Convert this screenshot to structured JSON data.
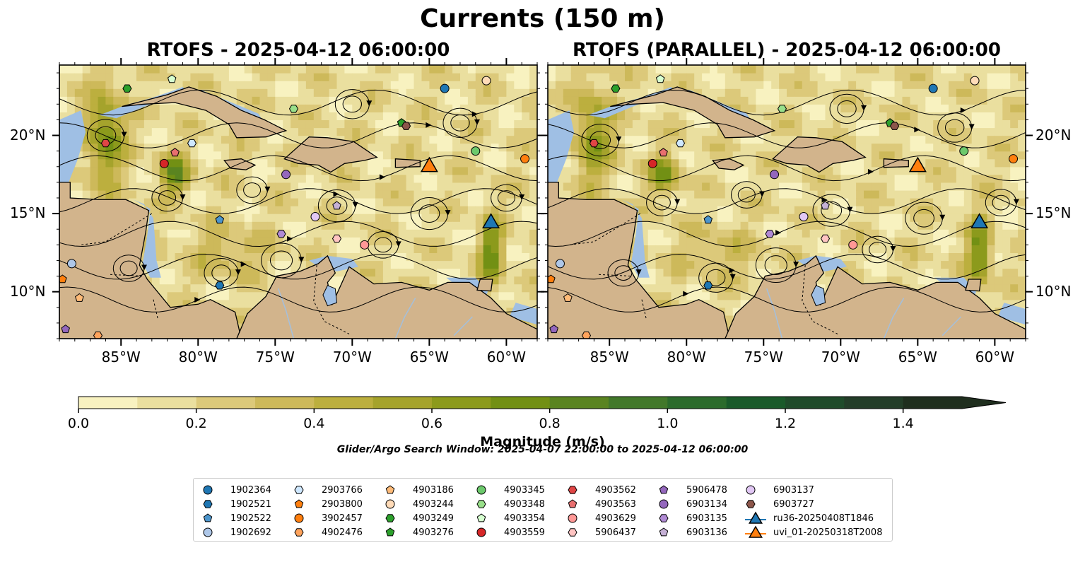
{
  "title": "Currents (150 m)",
  "panels": [
    {
      "title": "RTOFS - 2025-04-12 06:00:00"
    },
    {
      "title": "RTOFS (PARALLEL) - 2025-04-12 06:00:00"
    }
  ],
  "chart_data": {
    "type": "heatmap",
    "map_extent": {
      "lon": [
        -89.0,
        -58.0
      ],
      "lat": [
        7.0,
        24.5
      ]
    },
    "x_ticks": [
      "85°W",
      "80°W",
      "75°W",
      "70°W",
      "65°W",
      "60°W"
    ],
    "x_tick_values": [
      -85,
      -80,
      -75,
      -70,
      -65,
      -60
    ],
    "y_ticks": [
      "10°N",
      "15°N",
      "20°N"
    ],
    "y_tick_values": [
      10,
      15,
      20
    ],
    "colorbar": {
      "label": "Magnitude (m/s)",
      "min": 0.0,
      "max": 1.5,
      "extend": "max",
      "tick_labels": [
        "0.0",
        "0.2",
        "0.4",
        "0.6",
        "0.8",
        "1.0",
        "1.2",
        "1.4"
      ],
      "tick_values": [
        0.0,
        0.2,
        0.4,
        0.6,
        0.8,
        1.0,
        1.2,
        1.4
      ],
      "levels": [
        0.0,
        0.1,
        0.2,
        0.3,
        0.4,
        0.5,
        0.6,
        0.7,
        0.8,
        0.9,
        1.0,
        1.1,
        1.2,
        1.3,
        1.4,
        1.5
      ],
      "colors": [
        "#f8f2c0",
        "#eadf9f",
        "#dcc97a",
        "#cdb95a",
        "#bcaf3e",
        "#a5a32c",
        "#8c9a1c",
        "#729014",
        "#5a8420",
        "#42782a",
        "#2c6b2c",
        "#1a5a2a",
        "#1f4b2a",
        "#233d28",
        "#1f2e1e"
      ]
    },
    "search_window": "Glider/Argo Search Window: 2025-04-07 22:00:00 to 2025-04-12 06:00:00",
    "legend_columns": [
      [
        "1902364",
        "1902521",
        "1902522",
        "1902692"
      ],
      [
        "2903766",
        "2903800",
        "3902457",
        "4902476"
      ],
      [
        "4903186",
        "4903244",
        "4903249",
        "4903276"
      ],
      [
        "4903345",
        "4903348",
        "4903354",
        "4903559"
      ],
      [
        "4903562",
        "4903563",
        "4903629",
        "5906437"
      ],
      [
        "5906478",
        "6903134",
        "6903135",
        "6903136"
      ],
      [
        "6903137",
        "6903727",
        "ru36-20250408T1846",
        "uvi_01-20250318T2008"
      ]
    ],
    "series": [
      {
        "name": "1902364",
        "marker": "circle",
        "color": "#1f77b4",
        "lon": -64.0,
        "lat": 23.0
      },
      {
        "name": "1902521",
        "marker": "hexagon",
        "color": "#1f77b4",
        "lon": -78.6,
        "lat": 10.4
      },
      {
        "name": "1902522",
        "marker": "pentagon",
        "color": "#4c95cc",
        "lon": -78.6,
        "lat": 14.6
      },
      {
        "name": "1902692",
        "marker": "circle",
        "color": "#aec7e8",
        "lon": -88.2,
        "lat": 11.8
      },
      {
        "name": "2903766",
        "marker": "hexagon",
        "color": "#cfe8ff",
        "lon": -80.4,
        "lat": 19.5
      },
      {
        "name": "2903800",
        "marker": "pentagon",
        "color": "#ff7f0e",
        "lon": -88.8,
        "lat": 10.8
      },
      {
        "name": "3902457",
        "marker": "circle",
        "color": "#ff7f0e",
        "lon": -58.8,
        "lat": 18.5
      },
      {
        "name": "4902476",
        "marker": "hexagon",
        "color": "#ffa35c",
        "lon": -86.5,
        "lat": 7.2
      },
      {
        "name": "4903186",
        "marker": "pentagon",
        "color": "#ffbb78",
        "lon": -87.7,
        "lat": 9.6
      },
      {
        "name": "4903244",
        "marker": "circle",
        "color": "#ffdbb8",
        "lon": -61.3,
        "lat": 23.5
      },
      {
        "name": "4903249",
        "marker": "hexagon",
        "color": "#2ca02c",
        "lon": -84.6,
        "lat": 23.0
      },
      {
        "name": "4903276",
        "marker": "pentagon",
        "color": "#2ca02c",
        "lon": -66.8,
        "lat": 20.8
      },
      {
        "name": "4903345",
        "marker": "circle",
        "color": "#6cc96c",
        "lon": -62.0,
        "lat": 19.0
      },
      {
        "name": "4903348",
        "marker": "hexagon",
        "color": "#98df8a",
        "lon": -73.8,
        "lat": 21.7
      },
      {
        "name": "4903354",
        "marker": "pentagon",
        "color": "#d6ffd0",
        "lon": -81.7,
        "lat": 23.6
      },
      {
        "name": "4903559",
        "marker": "circle",
        "color": "#d62728",
        "lon": -82.2,
        "lat": 18.2
      },
      {
        "name": "4903562",
        "marker": "hexagon",
        "color": "#e04545",
        "lon": -86.0,
        "lat": 19.5
      },
      {
        "name": "4903563",
        "marker": "pentagon",
        "color": "#e86f6f",
        "lon": -81.5,
        "lat": 18.9
      },
      {
        "name": "4903629",
        "marker": "circle",
        "color": "#ff9896",
        "lon": -69.2,
        "lat": 13.0
      },
      {
        "name": "5906437",
        "marker": "hexagon",
        "color": "#ffc4c2",
        "lon": -71.0,
        "lat": 13.4
      },
      {
        "name": "5906478",
        "marker": "pentagon",
        "color": "#9467bd",
        "lon": -88.6,
        "lat": 7.6
      },
      {
        "name": "6903134",
        "marker": "circle",
        "color": "#9467bd",
        "lon": -74.3,
        "lat": 17.5
      },
      {
        "name": "6903135",
        "marker": "hexagon",
        "color": "#b08ad4",
        "lon": -74.6,
        "lat": 13.7
      },
      {
        "name": "6903136",
        "marker": "pentagon",
        "color": "#c5b0d5",
        "lon": -71.0,
        "lat": 15.5
      },
      {
        "name": "6903137",
        "marker": "circle",
        "color": "#e2c8f5",
        "lon": -72.4,
        "lat": 14.8
      },
      {
        "name": "6903727",
        "marker": "hexagon",
        "color": "#8c564b",
        "lon": -66.5,
        "lat": 20.6
      },
      {
        "name": "ru36-20250408T1846",
        "marker": "triangle",
        "color": "#1f77b4",
        "lon": -61.0,
        "lat": 14.5
      },
      {
        "name": "uvi_01-20250318T2008",
        "marker": "triangle",
        "color": "#ff7f0e",
        "lon": -65.0,
        "lat": 18.1
      }
    ]
  }
}
